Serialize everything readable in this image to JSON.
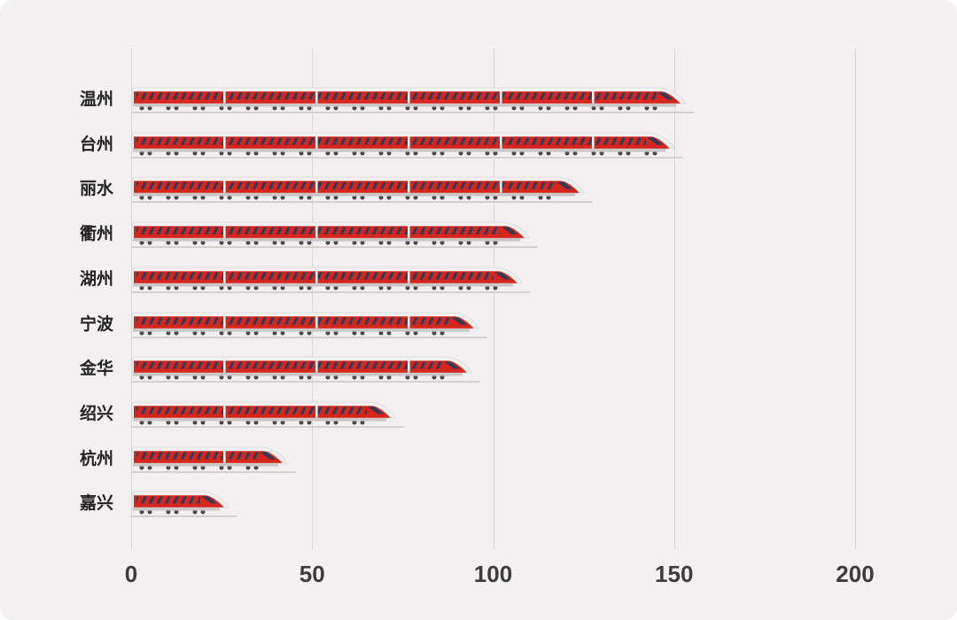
{
  "chart_data": {
    "type": "bar",
    "orientation": "horizontal",
    "bar_style": "train-pictogram",
    "title": "",
    "xlabel": "",
    "ylabel": "",
    "categories": [
      "温州",
      "台州",
      "丽水",
      "衢州",
      "湖州",
      "宁波",
      "金华",
      "绍兴",
      "杭州",
      "嘉兴"
    ],
    "values": [
      153,
      150,
      125,
      110,
      108,
      96,
      94,
      73,
      43,
      27
    ],
    "x_ticks": [
      0,
      50,
      100,
      150,
      200
    ],
    "xlim": [
      0,
      200
    ],
    "grid": true,
    "colors": {
      "background": "#f2f0f1",
      "train_red": "#d6251d",
      "train_window": "#343a56",
      "train_shell": "#f3f1f0",
      "underbody": "#c9c6c7",
      "wheel": "#4b4849",
      "track": "#d4d1d2",
      "gridline": "#d8d5d6",
      "tick_text": "#3c3c3c",
      "label_text": "#222222"
    }
  }
}
